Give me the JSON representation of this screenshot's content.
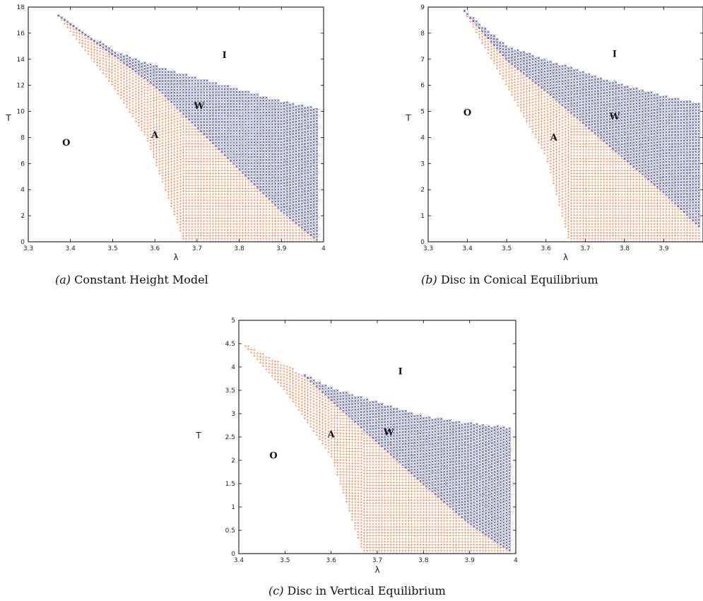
{
  "chart_data": [
    {
      "type": "scatter",
      "caption_tag": "(a)",
      "caption_text": "Constant Height Model",
      "xlabel": "λ",
      "ylabel": "T",
      "xlim": [
        3.3,
        4.0
      ],
      "ylim": [
        0,
        18
      ],
      "xticks": [
        "3.3",
        "3.4",
        "3.5",
        "3.6",
        "3.7",
        "3.8",
        "3.9",
        "4"
      ],
      "yticks": [
        "0",
        "2",
        "4",
        "6",
        "8",
        "10",
        "12",
        "14",
        "16",
        "18"
      ],
      "grid": false,
      "regions": {
        "A_lower_boundary": [
          [
            3.37,
            17.4
          ],
          [
            3.5,
            12.0
          ],
          [
            3.58,
            8.0
          ],
          [
            3.67,
            0
          ]
        ],
        "W_lower_boundary": [
          [
            3.37,
            17.4
          ],
          [
            3.5,
            14.4
          ],
          [
            3.6,
            12.0
          ],
          [
            3.7,
            8.8
          ],
          [
            3.8,
            5.6
          ],
          [
            3.9,
            2.4
          ],
          [
            3.99,
            0
          ]
        ],
        "W_upper_boundary": [
          [
            3.37,
            17.4
          ],
          [
            3.5,
            14.7
          ],
          [
            3.6,
            13.5
          ],
          [
            3.7,
            12.6
          ],
          [
            3.8,
            11.7
          ],
          [
            3.9,
            10.8
          ],
          [
            3.99,
            10.2
          ]
        ],
        "x_end": 3.99
      },
      "series": [
        {
          "marker": "+",
          "color": "#f07840"
        },
        {
          "marker": "x",
          "color": "#3a3aa0"
        }
      ],
      "annotations": [
        {
          "text": "I",
          "x": 3.765,
          "y": 14.3
        },
        {
          "text": "W",
          "x": 3.705,
          "y": 10.4
        },
        {
          "text": "A",
          "x": 3.6,
          "y": 8.2
        },
        {
          "text": "O",
          "x": 3.39,
          "y": 7.6
        }
      ]
    },
    {
      "type": "scatter",
      "caption_tag": "(b)",
      "caption_text": "Disc in Conical Equilibrium",
      "xlabel": "λ",
      "ylabel": "T",
      "xlim": [
        3.3,
        4.0
      ],
      "ylim": [
        0,
        9
      ],
      "xticks": [
        "3.3",
        "3.4",
        "3.5",
        "3.6",
        "3.7",
        "3.8",
        "3.9",
        ""
      ],
      "yticks": [
        "0",
        "1",
        "2",
        "3",
        "4",
        "5",
        "6",
        "7",
        "8",
        "9"
      ],
      "grid": false,
      "regions": {
        "A_lower_boundary": [
          [
            3.39,
            8.9
          ],
          [
            3.5,
            6.0
          ],
          [
            3.6,
            3.3
          ],
          [
            3.66,
            0
          ]
        ],
        "W_lower_boundary": [
          [
            3.39,
            8.9
          ],
          [
            3.5,
            7.0
          ],
          [
            3.6,
            5.8
          ],
          [
            3.7,
            4.5
          ],
          [
            3.8,
            3.2
          ],
          [
            3.9,
            1.9
          ],
          [
            3.99,
            0.6
          ]
        ],
        "W_upper_boundary": [
          [
            3.39,
            8.9
          ],
          [
            3.5,
            7.5
          ],
          [
            3.6,
            7.0
          ],
          [
            3.7,
            6.5
          ],
          [
            3.8,
            6.0
          ],
          [
            3.9,
            5.6
          ],
          [
            3.99,
            5.3
          ]
        ],
        "x_end": 3.99
      },
      "series": [
        {
          "marker": "+",
          "color": "#f07840"
        },
        {
          "marker": "x",
          "color": "#3a3aa0"
        }
      ],
      "annotations": [
        {
          "text": "I",
          "x": 3.775,
          "y": 7.2
        },
        {
          "text": "W",
          "x": 3.775,
          "y": 4.8
        },
        {
          "text": "A",
          "x": 3.62,
          "y": 4.0
        },
        {
          "text": "O",
          "x": 3.4,
          "y": 4.95
        }
      ]
    },
    {
      "type": "scatter",
      "caption_tag": "(c)",
      "caption_text": "Disc in Vertical Equilibrium",
      "xlabel": "λ",
      "ylabel": "T",
      "xlim": [
        3.4,
        4.0
      ],
      "ylim": [
        0,
        5
      ],
      "xticks": [
        "3.4",
        "3.5",
        "3.6",
        "3.7",
        "3.8",
        "3.9",
        "4"
      ],
      "yticks": [
        "0",
        "0.5",
        "1",
        "1.5",
        "2",
        "2.5",
        "3",
        "3.5",
        "4",
        "4.5",
        "5"
      ],
      "grid": false,
      "regions": {
        "A_lower_boundary": [
          [
            3.41,
            4.5
          ],
          [
            3.5,
            3.5
          ],
          [
            3.6,
            2.1
          ],
          [
            3.67,
            0
          ]
        ],
        "A_upper_boundary": [
          [
            3.41,
            4.5
          ],
          [
            3.5,
            4.05
          ],
          [
            3.54,
            3.85
          ]
        ],
        "W_lower_boundary": [
          [
            3.54,
            3.85
          ],
          [
            3.6,
            3.3
          ],
          [
            3.7,
            2.4
          ],
          [
            3.8,
            1.5
          ],
          [
            3.9,
            0.65
          ],
          [
            3.99,
            0.05
          ]
        ],
        "W_upper_boundary": [
          [
            3.54,
            3.85
          ],
          [
            3.6,
            3.55
          ],
          [
            3.7,
            3.25
          ],
          [
            3.8,
            2.95
          ],
          [
            3.9,
            2.8
          ],
          [
            3.99,
            2.7
          ]
        ],
        "x_end": 3.99
      },
      "series": [
        {
          "marker": "+",
          "color": "#f07840"
        },
        {
          "marker": "x",
          "color": "#3a3aa0"
        }
      ],
      "annotations": [
        {
          "text": "I",
          "x": 3.75,
          "y": 3.9
        },
        {
          "text": "W",
          "x": 3.725,
          "y": 2.6
        },
        {
          "text": "A",
          "x": 3.6,
          "y": 2.55
        },
        {
          "text": "O",
          "x": 3.475,
          "y": 2.1
        }
      ]
    }
  ]
}
